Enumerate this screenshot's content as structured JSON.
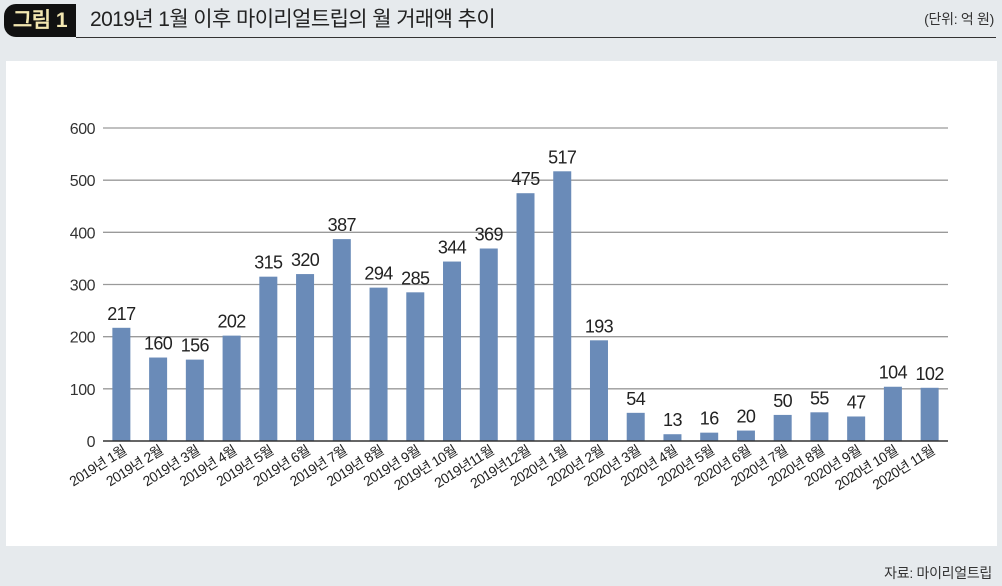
{
  "header": {
    "figure_label": "그림 1",
    "title": "2019년 1월 이후 마이리얼트립의 월 거래액 추이",
    "unit": "(단위: 억 원)"
  },
  "footer": {
    "source": "자료: 마이리얼트립"
  },
  "colors": {
    "bar": "#6a8bb8",
    "gridline": "#9a9a9a",
    "axis": "#333333",
    "panel_bg": "#ffffff",
    "page_bg": "#e6eaed"
  },
  "chart_data": {
    "type": "bar",
    "title": "2019년 1월 이후 마이리얼트립의 월 거래액 추이",
    "xlabel": "",
    "ylabel": "",
    "unit": "억 원",
    "ylim": [
      0,
      600
    ],
    "yticks": [
      0,
      100,
      200,
      300,
      400,
      500,
      600
    ],
    "grid": true,
    "legend": "none",
    "data_labels": true,
    "categories": [
      "2019년 1월",
      "2019년 2월",
      "2019년 3월",
      "2019년 4월",
      "2019년 5월",
      "2019년 6월",
      "2019년 7월",
      "2019년 8월",
      "2019년 9월",
      "2019년 10월",
      "2019년11월",
      "2019년12월",
      "2020년 1월",
      "2020년 2월",
      "2020년 3월",
      "2020년 4월",
      "2020년 5월",
      "2020년 6월",
      "2020년 7월",
      "2020년 8월",
      "2020년 9월",
      "2020년 10월",
      "2020년 11월"
    ],
    "values": [
      217,
      160,
      156,
      202,
      315,
      320,
      387,
      294,
      285,
      344,
      369,
      475,
      517,
      193,
      54,
      13,
      16,
      20,
      50,
      55,
      47,
      104,
      102
    ]
  }
}
